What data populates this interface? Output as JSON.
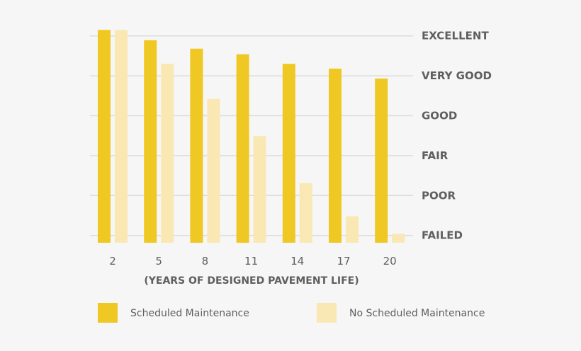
{
  "chart_data": {
    "type": "bar",
    "title": "",
    "xlabel": "(YEARS OF DESIGNED PAVEMENT LIFE)",
    "ylabel": "",
    "categories": [
      "2",
      "5",
      "8",
      "11",
      "14",
      "17",
      "20"
    ],
    "y_tick_labels": [
      "FAILED",
      "POOR",
      "FAIR",
      "GOOD",
      "VERY GOOD",
      "EXCELLENT"
    ],
    "ylim": [
      0,
      5
    ],
    "grid": true,
    "legend_position": "bottom",
    "series": [
      {
        "name": "Scheduled Maintenance",
        "color": "#F0C823",
        "values": [
          5.15,
          4.89,
          4.68,
          4.54,
          4.3,
          4.18,
          3.93
        ]
      },
      {
        "name": "No Scheduled Maintenance",
        "color": "#FAE8B4",
        "values": [
          5.15,
          4.3,
          3.42,
          2.49,
          1.31,
          0.48,
          0.04
        ]
      }
    ]
  }
}
